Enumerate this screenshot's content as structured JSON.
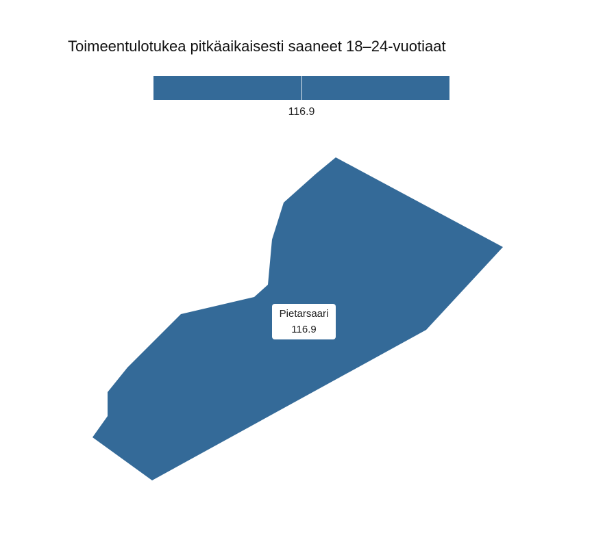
{
  "title": "Toimeentulotukea pitkäaikaisesti saaneet 18–24-vuotiaat",
  "colors": {
    "region_fill": "#346a98",
    "background": "#ffffff"
  },
  "legend": {
    "value_label": "116.9"
  },
  "regions": [
    {
      "name": "Pietarsaari",
      "value": 116.9,
      "value_label": "116.9"
    }
  ]
}
